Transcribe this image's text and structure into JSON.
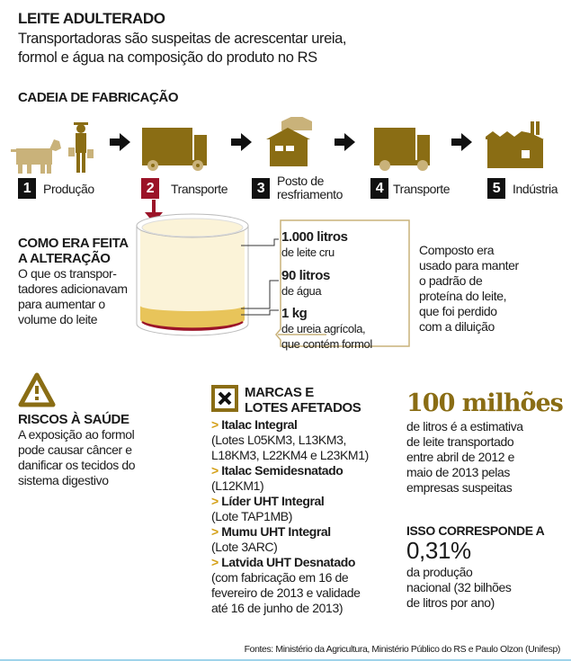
{
  "header": {
    "title": "LEITE ADULTERADO",
    "subtitle_lines": [
      "Transportadoras são suspeitas de acrescentar ureia,",
      "formol e água na composição do produto no RS"
    ]
  },
  "chain": {
    "title": "CADEIA DE FABRICAÇÃO",
    "steps": [
      {
        "n": "1",
        "label": "Produção",
        "icon": "cow-farmer-icon"
      },
      {
        "n": "2",
        "label": "Transporte",
        "icon": "truck-icon",
        "highlight": true
      },
      {
        "n": "3",
        "label": "Posto de resfriamento",
        "label_lines": [
          "Posto de",
          "resfriamento"
        ],
        "icon": "cooling-station-icon"
      },
      {
        "n": "4",
        "label": "Transporte",
        "icon": "truck-icon"
      },
      {
        "n": "5",
        "label": "Indústria",
        "icon": "factory-icon"
      }
    ]
  },
  "alteration": {
    "title_lines": [
      "COMO ERA FEITA",
      "A ALTERAÇÃO"
    ],
    "text_lines": [
      "O que os transpor-",
      "tadores adicionavam",
      "para aumentar o",
      "volume do leite"
    ],
    "layers": [
      {
        "amount": "1.000 litros",
        "desc_lines": [
          "de leite cru"
        ]
      },
      {
        "amount": "90 litros",
        "desc_lines": [
          "de água"
        ]
      },
      {
        "amount": "1 kg",
        "desc_lines": [
          "de ureia agrícola,",
          "que contém formol"
        ]
      }
    ],
    "callout_lines": [
      "Composto era",
      "usado para manter",
      "o padrão de",
      "proteína do leite,",
      "que foi perdido",
      "com a diluição"
    ]
  },
  "risks": {
    "title": "RISCOS À SAÚDE",
    "text_lines": [
      "A exposição ao formol",
      "pode causar câncer e",
      "danificar os tecidos do",
      "sistema digestivo"
    ]
  },
  "brands": {
    "title_lines": [
      "MARCAS E",
      "LOTES AFETADOS"
    ],
    "items": [
      {
        "name": "Italac Integral",
        "lines": [
          "(Lotes L05KM3, L13KM3,",
          "L18KM3, L22KM4 e L23KM1)"
        ]
      },
      {
        "name": "Italac Semidesnatado",
        "lines": [
          "(L12KM1)"
        ]
      },
      {
        "name": "Líder UHT Integral",
        "lines": [
          "(Lote TAP1MB)"
        ]
      },
      {
        "name": "Mumu UHT Integral",
        "lines": [
          "(Lote 3ARC)"
        ]
      },
      {
        "name": "Latvida UHT Desnatado",
        "lines": [
          "(com fabricação em 16 de",
          "fevereiro de 2013 e validade",
          "até 16 de junho de 2013)"
        ]
      }
    ]
  },
  "stats": {
    "big": "100 milhões",
    "big_lines": [
      "de litros é a estimativa",
      "de leite transportado",
      "entre abril de 2012 e",
      "maio de 2013 pelas",
      "empresas suspeitas"
    ],
    "corr_title": "ISSO CORRESPONDE A",
    "pct": "0,31%",
    "pct_lines": [
      "da produção",
      "nacional (32 bilhões",
      "de litros por ano)"
    ]
  },
  "sources": "Fontes: Ministério da Agricultura, Ministério Público do RS e Paulo Olzon (Unifesp)",
  "colors": {
    "gold": "#8a6d14",
    "tan": "#c9b27a",
    "red": "#9b1428",
    "milk": "#fbf3d8",
    "urea": "#e8c45a"
  }
}
